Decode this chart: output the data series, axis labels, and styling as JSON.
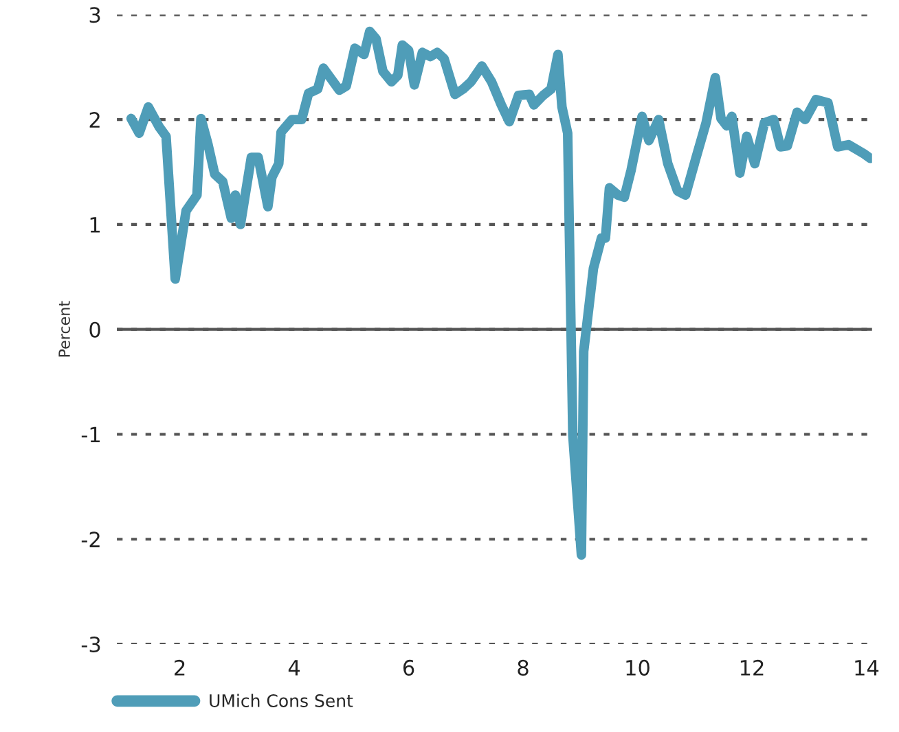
{
  "chart_data": {
    "type": "line",
    "ylabel": "Percent",
    "xlim": [
      0.9,
      14.1
    ],
    "xticks": [
      2,
      4,
      6,
      8,
      10,
      12,
      14
    ],
    "ylim": [
      -3,
      3
    ],
    "yticks": [
      -3,
      -2,
      -1,
      0,
      1,
      2,
      3
    ],
    "grid": "y",
    "legend": "bottom left",
    "line_style": "solid",
    "marker": "none",
    "ref_lines": [
      {
        "axis": "y",
        "value": 0,
        "color": "#555555"
      }
    ],
    "series": [
      {
        "name": "UMich Cons Sent",
        "color": "#4f9db8",
        "x": [
          1.15,
          1.29,
          1.45,
          1.64,
          1.76,
          1.92,
          2.11,
          2.3,
          2.37,
          2.49,
          2.61,
          2.75,
          2.9,
          2.97,
          3.06,
          3.25,
          3.37,
          3.54,
          3.61,
          3.73,
          3.77,
          3.96,
          4.13,
          4.25,
          4.41,
          4.51,
          4.63,
          4.79,
          4.91,
          5.06,
          5.22,
          5.32,
          5.43,
          5.55,
          5.7,
          5.81,
          5.89,
          6.0,
          6.1,
          6.24,
          6.38,
          6.5,
          6.62,
          6.81,
          6.95,
          7.09,
          7.28,
          7.45,
          7.62,
          7.76,
          7.92,
          8.11,
          8.19,
          8.35,
          8.49,
          8.61,
          8.68,
          8.78,
          8.87,
          9.02,
          9.06,
          9.23,
          9.37,
          9.44,
          9.51,
          9.66,
          9.77,
          9.89,
          10.08,
          10.2,
          10.37,
          10.53,
          10.7,
          10.84,
          11.01,
          11.2,
          11.36,
          11.46,
          11.56,
          11.65,
          11.79,
          11.91,
          12.05,
          12.22,
          12.38,
          12.5,
          12.62,
          12.79,
          12.93,
          13.12,
          13.33,
          13.5,
          13.69,
          13.97,
          14.07
        ],
        "values": [
          2.01,
          1.87,
          2.12,
          1.93,
          1.84,
          0.48,
          1.13,
          1.28,
          2.01,
          1.77,
          1.48,
          1.41,
          1.06,
          1.28,
          1.0,
          1.64,
          1.64,
          1.17,
          1.45,
          1.58,
          1.88,
          2.0,
          2.0,
          2.25,
          2.29,
          2.49,
          2.4,
          2.28,
          2.32,
          2.68,
          2.62,
          2.84,
          2.77,
          2.46,
          2.36,
          2.42,
          2.71,
          2.66,
          2.33,
          2.64,
          2.6,
          2.64,
          2.58,
          2.24,
          2.29,
          2.36,
          2.51,
          2.36,
          2.14,
          1.98,
          2.23,
          2.24,
          2.14,
          2.23,
          2.29,
          2.62,
          2.12,
          1.87,
          -1.01,
          -2.15,
          -0.21,
          0.58,
          0.87,
          0.87,
          1.35,
          1.28,
          1.26,
          1.52,
          2.03,
          1.8,
          2.0,
          1.58,
          1.32,
          1.28,
          1.61,
          1.97,
          2.4,
          2.01,
          1.94,
          2.03,
          1.49,
          1.84,
          1.58,
          1.97,
          2.0,
          1.74,
          1.75,
          2.07,
          2.0,
          2.19,
          2.16,
          1.74,
          1.76,
          1.67,
          1.63
        ]
      }
    ]
  }
}
